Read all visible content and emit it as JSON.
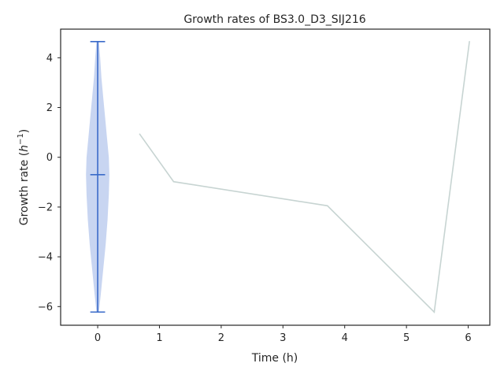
{
  "chart_data": {
    "type": "line",
    "title": "Growth rates of BS3.0_D3_SIJ216",
    "xlabel": "Time (h)",
    "ylabel_prefix": "Growth rate (",
    "ylabel_symbol": "h",
    "ylabel_exponent": "−1",
    "ylabel_suffix": ")",
    "xlim": [
      -0.6,
      6.35
    ],
    "ylim": [
      -6.75,
      5.15
    ],
    "xticks": [
      0,
      1,
      2,
      3,
      4,
      5,
      6
    ],
    "xtick_labels": [
      "0",
      "1",
      "2",
      "3",
      "4",
      "5",
      "6"
    ],
    "yticks": [
      -6,
      -4,
      -2,
      0,
      2,
      4
    ],
    "ytick_labels": [
      "−6",
      "−4",
      "−2",
      "0",
      "2",
      "4"
    ],
    "grid": false,
    "series": [
      {
        "x": [
          0.68,
          1.23,
          3.72,
          5.45,
          6.02
        ],
        "y": [
          0.93,
          -0.98,
          -1.95,
          -6.22,
          4.65
        ],
        "color": "#c7d4d2"
      }
    ],
    "violin": {
      "position": 0,
      "min": -6.22,
      "max": 4.65,
      "median": -0.7,
      "profile_y": [
        -6.22,
        -5.5,
        -4.5,
        -3.5,
        -2.5,
        -1.5,
        -0.7,
        0.0,
        0.8,
        1.6,
        2.4,
        3.2,
        4.0,
        4.65
      ],
      "profile_halfwidth": [
        0.02,
        0.05,
        0.09,
        0.13,
        0.16,
        0.18,
        0.19,
        0.18,
        0.15,
        0.12,
        0.09,
        0.06,
        0.04,
        0.02
      ],
      "fill_color": "#c5d3f0",
      "line_color": "#3a6bc9"
    }
  }
}
